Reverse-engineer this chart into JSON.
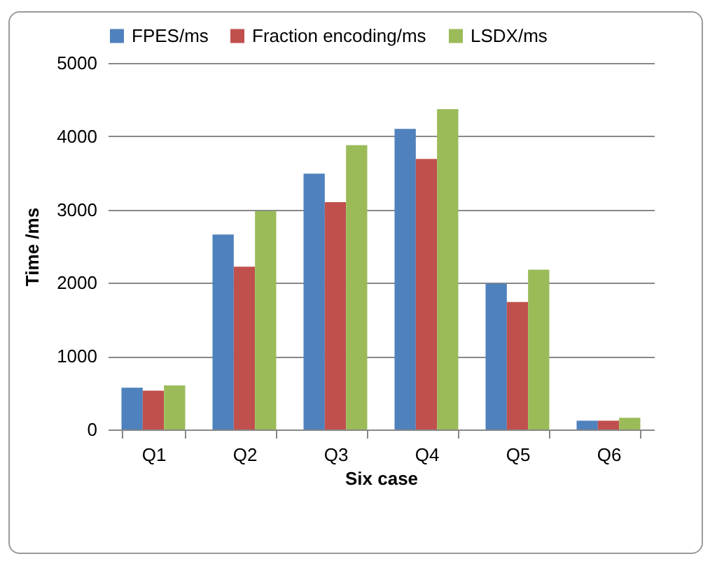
{
  "chart_data": {
    "type": "bar",
    "xlabel": "Six case",
    "ylabel": "Time /ms",
    "categories": [
      "Q1",
      "Q2",
      "Q3",
      "Q4",
      "Q5",
      "Q6"
    ],
    "series": [
      {
        "name": "FPES/ms",
        "color": "#4f81bd",
        "values": [
          570,
          2660,
          3490,
          4100,
          1990,
          120
        ]
      },
      {
        "name": "Fraction encoding/ms",
        "color": "#c0504d",
        "values": [
          530,
          2220,
          3100,
          3690,
          1740,
          120
        ]
      },
      {
        "name": "LSDX/ms",
        "color": "#9bbb59",
        "values": [
          600,
          2980,
          3880,
          4370,
          2180,
          160
        ]
      }
    ],
    "ylim": [
      0,
      5000
    ],
    "yticks": [
      0,
      1000,
      2000,
      3000,
      4000,
      5000
    ],
    "grid": "y",
    "legend": "top"
  }
}
